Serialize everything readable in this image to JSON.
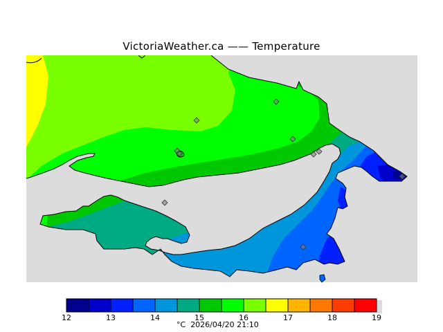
{
  "title": "VictoriaWeather.ca  ——  Temperature",
  "footer": {
    "unit": "°C",
    "timestamp": "2026/04/20 21:10"
  },
  "colors": {
    "ocean": "#dcdcdc",
    "coast": "#000000",
    "station_marker": "#808080"
  },
  "legend": {
    "bins": [
      {
        "from": 12.0,
        "to": 12.5,
        "color": "#000090"
      },
      {
        "from": 12.5,
        "to": 13.0,
        "color": "#0000cc"
      },
      {
        "from": 13.0,
        "to": 13.5,
        "color": "#0020ff"
      },
      {
        "from": 13.5,
        "to": 14.0,
        "color": "#0064ff"
      },
      {
        "from": 14.0,
        "to": 14.5,
        "color": "#0096dc"
      },
      {
        "from": 14.5,
        "to": 15.0,
        "color": "#00aa82"
      },
      {
        "from": 15.0,
        "to": 15.5,
        "color": "#00c800"
      },
      {
        "from": 15.5,
        "to": 16.0,
        "color": "#00ff00"
      },
      {
        "from": 16.0,
        "to": 16.5,
        "color": "#78ff00"
      },
      {
        "from": 16.5,
        "to": 17.0,
        "color": "#ffff00"
      },
      {
        "from": 17.0,
        "to": 17.5,
        "color": "#ffb400"
      },
      {
        "from": 17.5,
        "to": 18.0,
        "color": "#ff7800"
      },
      {
        "from": 18.0,
        "to": 18.5,
        "color": "#ff3c00"
      },
      {
        "from": 18.5,
        "to": 19.0,
        "color": "#ff0000"
      }
    ],
    "tick_labels": [
      "12",
      "13",
      "14",
      "15",
      "16",
      "17",
      "18",
      "19"
    ]
  },
  "stations_count_visible": 10
}
